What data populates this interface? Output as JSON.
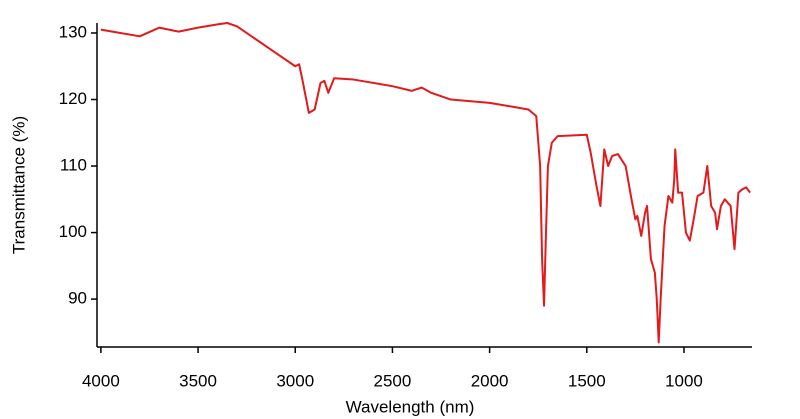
{
  "chart_data": {
    "type": "line",
    "x_label": "Wavelength (nm)",
    "y_label": "Transmittance (%)",
    "xlim": [
      4020,
      650
    ],
    "ylim": [
      82.8,
      131.5
    ],
    "xticks": [
      4000,
      3500,
      3000,
      2500,
      2000,
      1500,
      1000
    ],
    "yticks": [
      90,
      100,
      110,
      120,
      130
    ],
    "x": [
      4000,
      3900,
      3800,
      3700,
      3600,
      3500,
      3400,
      3350,
      3300,
      3200,
      3100,
      3000,
      2980,
      2960,
      2930,
      2900,
      2870,
      2850,
      2830,
      2800,
      2700,
      2500,
      2400,
      2350,
      2300,
      2200,
      2000,
      1900,
      1800,
      1760,
      1740,
      1730,
      1720,
      1710,
      1700,
      1680,
      1650,
      1500,
      1480,
      1450,
      1430,
      1410,
      1390,
      1370,
      1340,
      1300,
      1270,
      1250,
      1240,
      1220,
      1200,
      1190,
      1170,
      1160,
      1150,
      1140,
      1130,
      1120,
      1100,
      1080,
      1060,
      1050,
      1045,
      1030,
      1010,
      990,
      970,
      950,
      930,
      900,
      880,
      860,
      840,
      830,
      810,
      790,
      760,
      740,
      720,
      700,
      680,
      660
    ],
    "series": [
      {
        "color": "#e31a1c",
        "values": [
          130.5,
          130,
          129.5,
          130.8,
          130.2,
          130.8,
          131.3,
          131.5,
          131,
          129,
          127,
          125,
          125.3,
          122.5,
          118,
          118.5,
          122.5,
          122.8,
          121,
          123.2,
          123,
          122,
          121.3,
          121.8,
          121,
          120,
          119.5,
          119,
          118.5,
          117.5,
          110,
          96,
          89,
          100,
          110,
          113.5,
          114.5,
          114.7,
          112,
          107,
          104,
          112.5,
          110,
          111.5,
          111.8,
          110,
          105,
          102,
          102.5,
          99.5,
          103,
          104,
          96,
          95,
          94,
          90,
          83.5,
          90,
          101,
          105.5,
          104.5,
          108,
          112.5,
          106,
          106,
          100,
          98.8,
          102,
          105.5,
          106,
          110,
          104,
          103,
          100.5,
          104,
          105,
          104,
          97.5,
          106,
          106.5,
          106.8,
          106
        ]
      }
    ]
  }
}
